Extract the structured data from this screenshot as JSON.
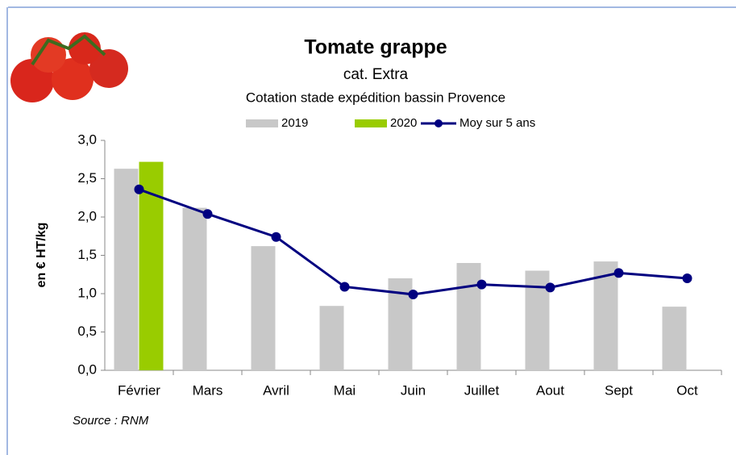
{
  "chart_data": {
    "type": "bar",
    "title": "Tomate grappe",
    "subtitle": "cat. Extra",
    "description": "Cotation stade expédition bassin Provence",
    "ylabel": "en € HT/kg",
    "source": "Source : RNM",
    "categories": [
      "Février",
      "Mars",
      "Avril",
      "Mai",
      "Juin",
      "Juillet",
      "Aout",
      "Sept",
      "Oct"
    ],
    "series": [
      {
        "name": "2019",
        "type": "bar",
        "color": "#c8c8c8",
        "values": [
          2.63,
          2.12,
          1.62,
          0.84,
          1.2,
          1.4,
          1.3,
          1.42,
          0.83
        ]
      },
      {
        "name": "2020",
        "type": "bar",
        "color": "#99cc00",
        "values": [
          2.72,
          null,
          null,
          null,
          null,
          null,
          null,
          null,
          null
        ]
      },
      {
        "name": "Moy sur 5 ans",
        "type": "line",
        "color": "#000080",
        "values": [
          2.36,
          2.04,
          1.74,
          1.09,
          0.99,
          1.12,
          1.08,
          1.27,
          1.2
        ]
      }
    ],
    "ylim": [
      0,
      3
    ],
    "yticks": [
      {
        "value": 0,
        "label": "0,0"
      },
      {
        "value": 0.5,
        "label": "0,5"
      },
      {
        "value": 1,
        "label": "1,0"
      },
      {
        "value": 1.5,
        "label": "1,5"
      },
      {
        "value": 2,
        "label": "2,0"
      },
      {
        "value": 2.5,
        "label": "2,5"
      },
      {
        "value": 3,
        "label": "3,0"
      }
    ],
    "grid": false,
    "legend": "top"
  }
}
